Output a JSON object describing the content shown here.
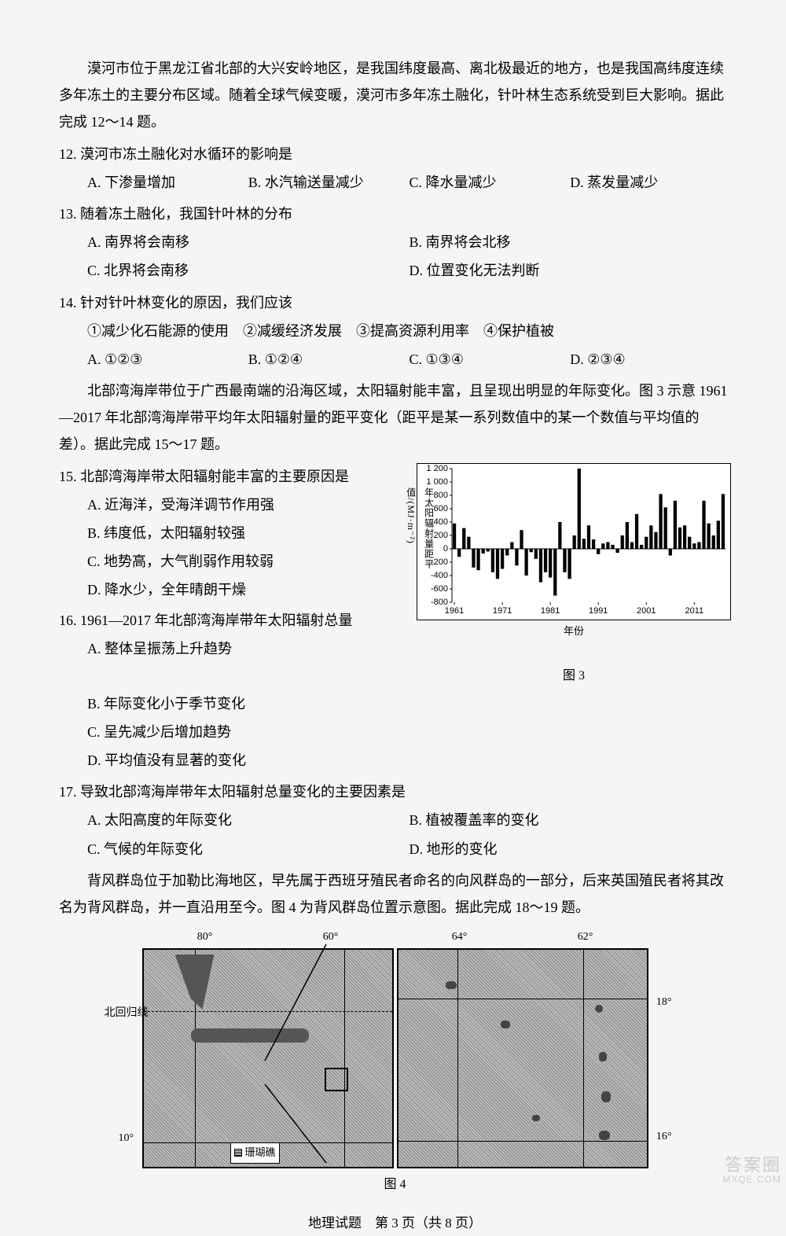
{
  "passage1": {
    "intro": "漠河市位于黑龙江省北部的大兴安岭地区，是我国纬度最高、离北极最近的地方，也是我国高纬度连续多年冻土的主要分布区域。随着全球气候变暖，漠河市多年冻土融化，针叶林生态系统受到巨大影响。据此完成 12～14 题。"
  },
  "q12": {
    "stem": "12. 漠河市冻土融化对水循环的影响是",
    "A": "A. 下渗量增加",
    "B": "B. 水汽输送量减少",
    "C": "C. 降水量减少",
    "D": "D. 蒸发量减少"
  },
  "q13": {
    "stem": "13. 随着冻土融化，我国针叶林的分布",
    "A": "A. 南界将会南移",
    "B": "B. 南界将会北移",
    "C": "C. 北界将会南移",
    "D": "D. 位置变化无法判断"
  },
  "q14": {
    "stem": "14. 针对针叶林变化的原因，我们应该",
    "circled": "①减少化石能源的使用　②减缓经济发展　③提高资源利用率　④保护植被",
    "A": "A. ①②③",
    "B": "B. ①②④",
    "C": "C. ①③④",
    "D": "D. ②③④"
  },
  "passage2": {
    "intro": "北部湾海岸带位于广西最南端的沿海区域，太阳辐射能丰富，且呈现出明显的年际变化。图 3 示意 1961—2017 年北部湾海岸带平均年太阳辐射量的距平变化（距平是某一系列数值中的某一个数值与平均值的差）。据此完成 15～17 题。"
  },
  "q15": {
    "stem": "15. 北部湾海岸带太阳辐射能丰富的主要原因是",
    "A": "A. 近海洋，受海洋调节作用强",
    "B": "B. 纬度低，太阳辐射较强",
    "C": "C. 地势高，大气削弱作用较弱",
    "D": "D. 降水少，全年晴朗干燥"
  },
  "q16": {
    "stem": "16. 1961—2017 年北部湾海岸带年太阳辐射总量",
    "A": "A. 整体呈振荡上升趋势",
    "B": "B. 年际变化小于季节变化",
    "C": "C. 呈先减少后增加趋势",
    "D": "D. 平均值没有显著的变化"
  },
  "q17": {
    "stem": "17. 导致北部湾海岸带年太阳辐射总量变化的主要因素是",
    "A": "A. 太阳高度的年际变化",
    "B": "B. 植被覆盖率的变化",
    "C": "C. 气候的年际变化",
    "D": "D. 地形的变化"
  },
  "passage3": {
    "intro": "背风群岛位于加勒比海地区，早先属于西班牙殖民者命名的向风群岛的一部分，后来英国殖民者将其改名为背风群岛，并一直沿用至今。图 4 为背风群岛位置示意图。据此完成 18～19 题。"
  },
  "chart3": {
    "type": "bar",
    "y_label_vertical": "年太阳辐射量距平值/(MJ·m⁻²)",
    "x_label": "年份",
    "caption": "图 3",
    "ylim": [
      -800,
      1200
    ],
    "ytick_step": 200,
    "yticks": [
      "1 200",
      "1 000",
      "800",
      "600",
      "400",
      "200",
      "0",
      "-200",
      "-400",
      "-600",
      "-800"
    ],
    "x_start": 1961,
    "x_end": 2017,
    "x_tick_step": 10,
    "xticks": [
      "1961",
      "1971",
      "1981",
      "1991",
      "2001",
      "2011"
    ],
    "bar_color": "#000000",
    "background_color": "#ffffff",
    "axis_color": "#000000",
    "font_size": 11,
    "values": [
      380,
      -120,
      310,
      180,
      -280,
      -320,
      -70,
      -40,
      -350,
      -450,
      -300,
      -100,
      100,
      -250,
      280,
      -400,
      -50,
      -150,
      -500,
      -350,
      -430,
      -700,
      400,
      -350,
      -450,
      200,
      1200,
      150,
      350,
      140,
      -80,
      80,
      100,
      60,
      -60,
      200,
      400,
      100,
      520,
      60,
      180,
      350,
      250,
      820,
      620,
      -100,
      720,
      320,
      350,
      180,
      80,
      100,
      720,
      380,
      200,
      420,
      820
    ]
  },
  "map4": {
    "caption": "图 4",
    "left_lons": [
      "80°",
      "60°"
    ],
    "right_lons": [
      "64°",
      "62°"
    ],
    "tropic_label": "北回归线",
    "left_lat_bottom": "10°",
    "right_lats": [
      "18°",
      "16°"
    ],
    "reef_label": "珊瑚礁",
    "border_color": "#000000",
    "fill_pattern_color": "#999999"
  },
  "footer": "地理试题　第 3 页（共 8 页）",
  "watermark": {
    "main": "答案圈",
    "sub": "MXQE.COM"
  }
}
